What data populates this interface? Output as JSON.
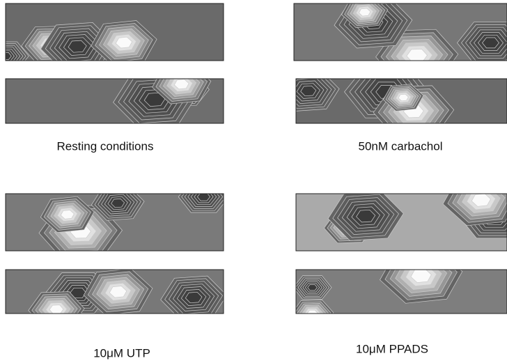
{
  "panels": [
    {
      "caption": "Resting conditions"
    },
    {
      "caption": "50nM carbachol"
    },
    {
      "caption": "10μM UTP"
    },
    {
      "caption": "10μM PPADS"
    }
  ]
}
